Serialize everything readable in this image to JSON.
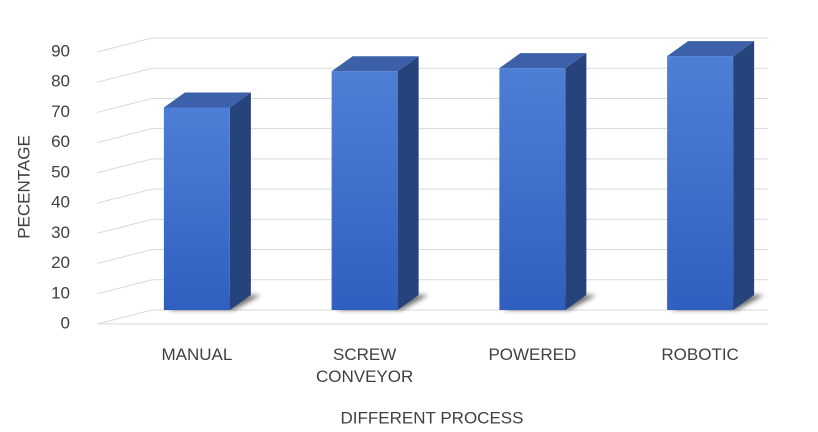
{
  "chart_data": {
    "type": "bar",
    "style": "3d-column",
    "categories": [
      "MANUAL",
      "SCREW CONVEYOR",
      "POWERED",
      "ROBOTIC"
    ],
    "series": [
      {
        "values": [
          69,
          81,
          82,
          86
        ]
      }
    ],
    "xlabel": "DIFFERENT PROCESS",
    "ylabel": "PECENTAGE",
    "ylim": [
      0,
      90
    ],
    "yticks": [
      0,
      10,
      20,
      30,
      40,
      50,
      60,
      70,
      80,
      90
    ],
    "grid": true,
    "legend": "none",
    "colors": {
      "front_top": "#4e7fd6",
      "front_bottom": "#2f5fc0",
      "side": "#27437c",
      "top": "#3c61a8",
      "grid": "#d9d9d9",
      "text": "#404040"
    }
  }
}
